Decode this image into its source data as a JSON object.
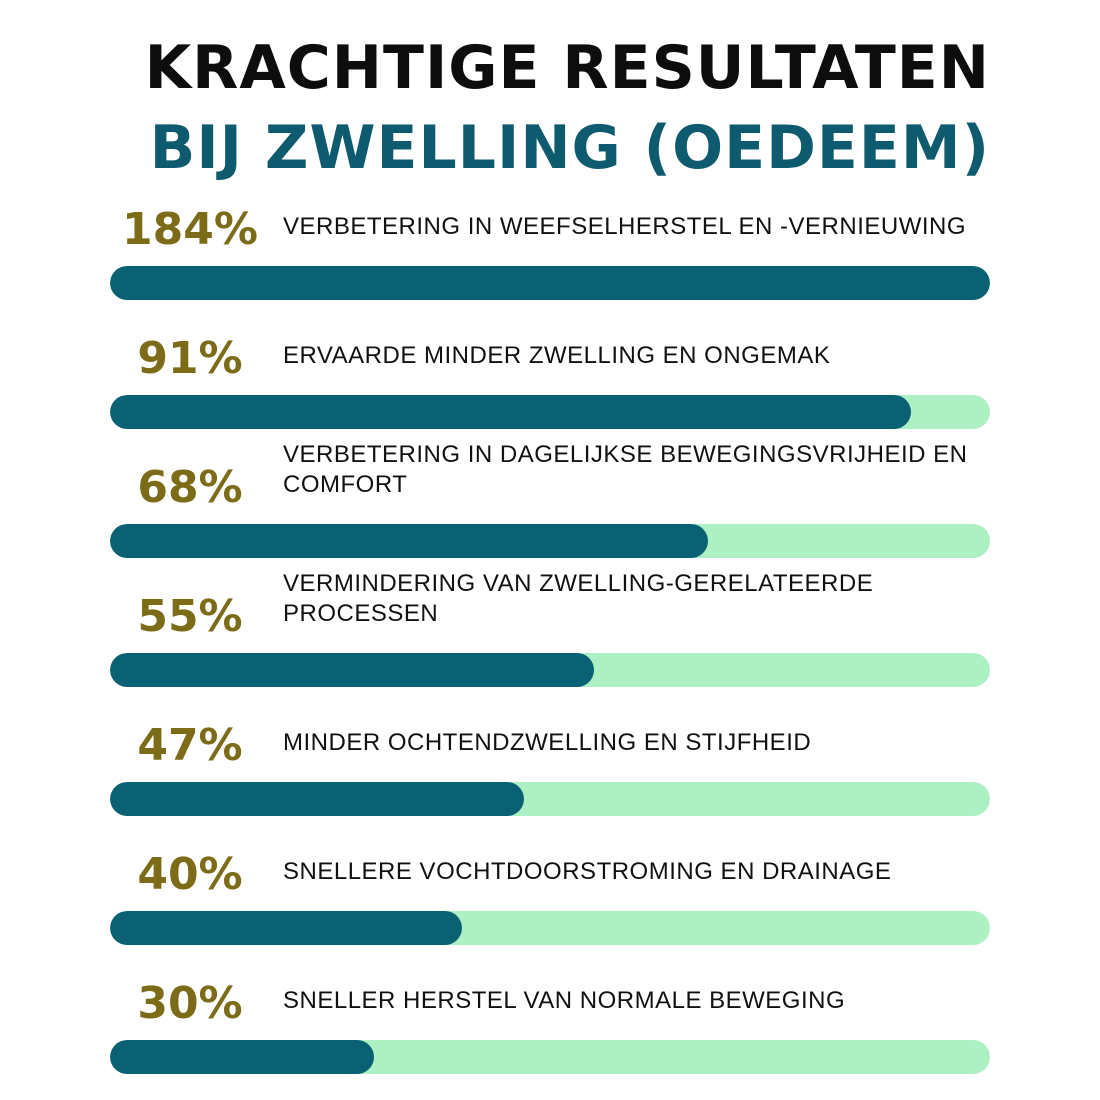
{
  "title": {
    "line1": "KRACHTIGE RESULTATEN",
    "line2": "BIJ ZWELLING (OEDEEM)"
  },
  "colors": {
    "title_dark": "#0d0d0d",
    "title_teal": "#0e5a6e",
    "percent": "#7d6c17",
    "bar_fill": "#0b6174",
    "bar_track": "#adf0c4"
  },
  "chart_data": {
    "type": "bar",
    "orientation": "horizontal",
    "categories": [
      "VERBETERING IN WEEFSELHERSTEL EN -VERNIEUWING",
      "ERVAARDE MINDER ZWELLING EN ONGEMAK",
      "VERBETERING IN DAGELIJKSE BEWEGINGSVRIJHEID EN COMFORT",
      "VERMINDERING VAN ZWELLING-GERELATEERDE PROCESSEN",
      "MINDER OCHTENDZWELLING EN STIJFHEID",
      "SNELLERE VOCHTDOORSTROMING EN DRAINAGE",
      "SNELLER HERSTEL VAN NORMALE BEWEGING"
    ],
    "values": [
      184,
      91,
      68,
      55,
      47,
      40,
      30
    ],
    "value_labels": [
      "184%",
      "91%",
      "68%",
      "55%",
      "47%",
      "40%",
      "30%"
    ],
    "xlim": [
      0,
      100
    ],
    "grid": false,
    "legend": "none"
  }
}
